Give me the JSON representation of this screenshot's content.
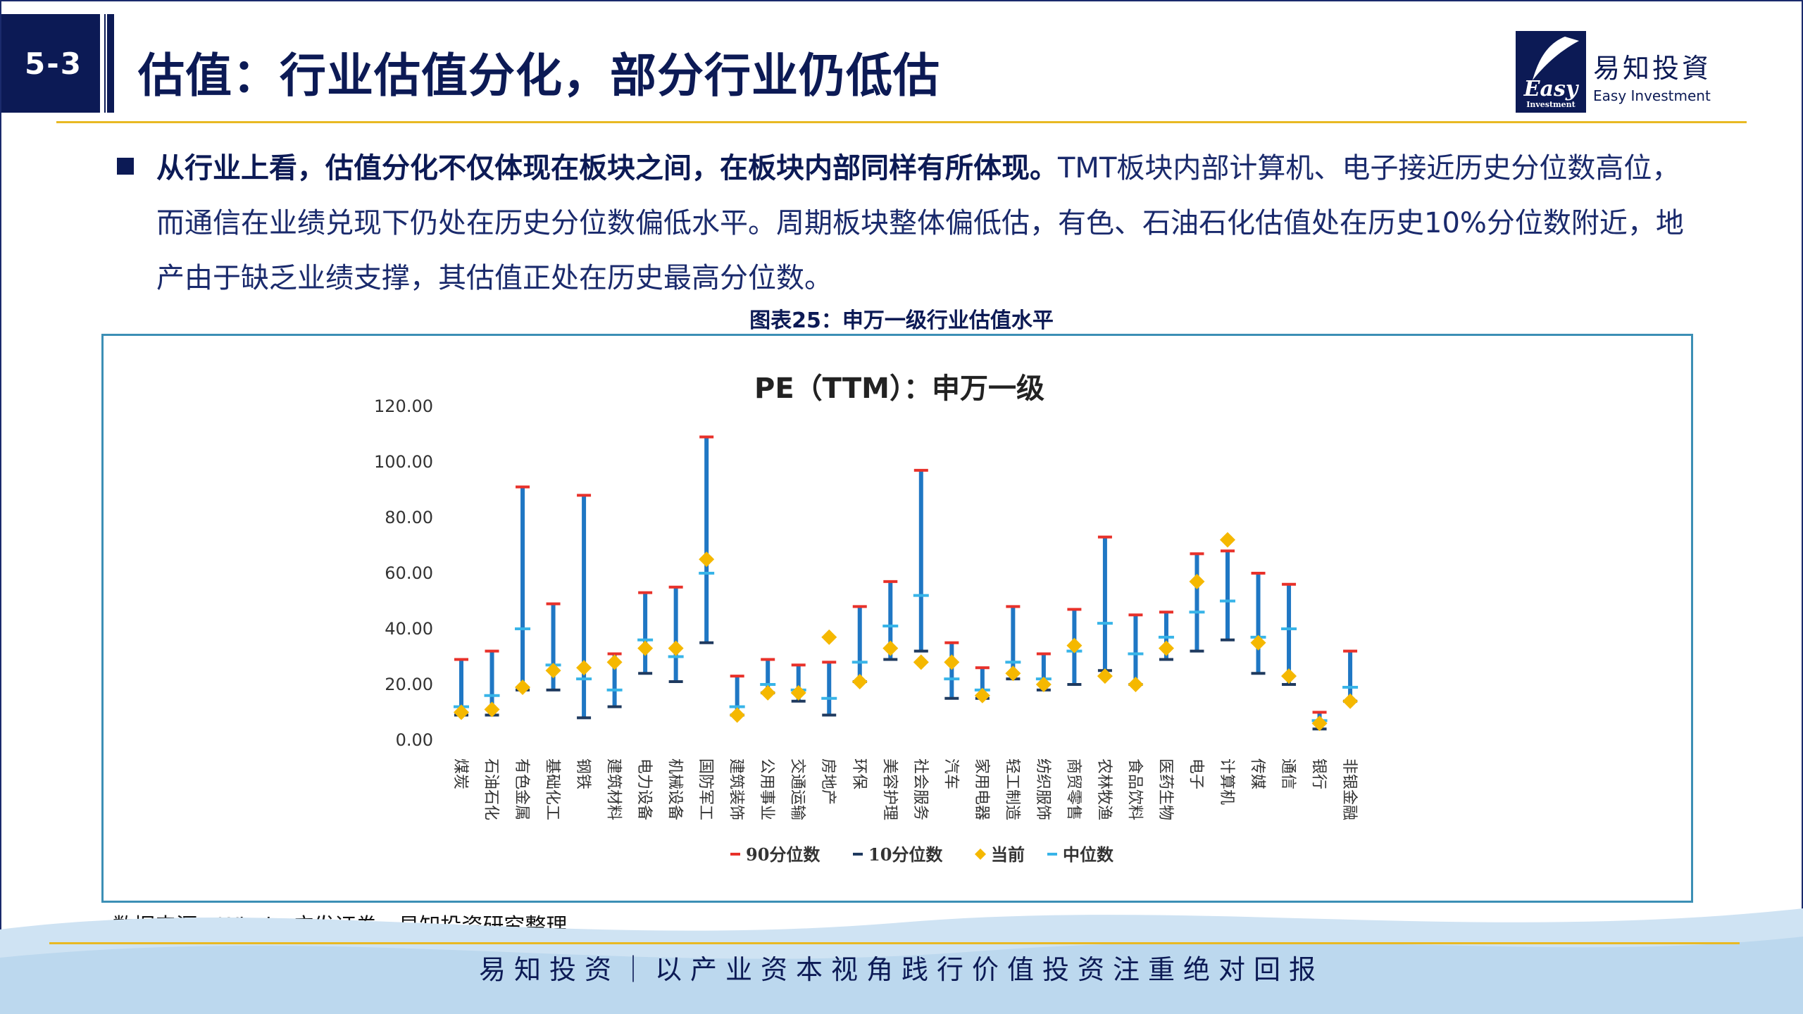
{
  "header": {
    "badge": "5-3",
    "title": "估值：行业估值分化，部分行业仍低估",
    "logo_cn": "易知投資",
    "logo_en": "Easy Investment",
    "logo_mark_text": "Easy",
    "logo_mark_sub": "Investment"
  },
  "body": {
    "bold_text": "从行业上看，估值分化不仅体现在板块之间，在板块内部同样有所体现。",
    "normal_text": "TMT板块内部计算机、电子接近历史分位数高位，而通信在业绩兑现下仍处在历史分位数偏低水平。周期板块整体偏低估，有色、石油石化估值处在历史10%分位数附近，地产由于缺乏业绩支撑，其估值正处在历史最高分位数。"
  },
  "figure": {
    "caption": "图表25：申万一级行业估值水平",
    "source": "数据来源：Wind、广发证券、易知投资研究整理"
  },
  "chart_data": {
    "type": "scatter",
    "title": "PE（TTM）：申万一级",
    "xlabel": "",
    "ylabel": "",
    "ylim": [
      0,
      120
    ],
    "ytick_labels": [
      "0.00",
      "20.00",
      "40.00",
      "60.00",
      "80.00",
      "100.00",
      "120.00"
    ],
    "grid": false,
    "legend_position": "bottom",
    "categories": [
      "煤炭",
      "石油石化",
      "有色金属",
      "基础化工",
      "钢铁",
      "建筑材料",
      "电力设备",
      "机械设备",
      "国防军工",
      "建筑装饰",
      "公用事业",
      "交通运输",
      "房地产",
      "环保",
      "美容护理",
      "社会服务",
      "汽车",
      "家用电器",
      "轻工制造",
      "纺织服饰",
      "商贸零售",
      "农林牧渔",
      "食品饮料",
      "医药生物",
      "电子",
      "计算机",
      "传媒",
      "通信",
      "银行",
      "非银金融"
    ],
    "series": [
      {
        "name": "90分位数",
        "values": [
          29,
          32,
          91,
          49,
          88,
          31,
          53,
          55,
          109,
          23,
          29,
          27,
          28,
          48,
          57,
          97,
          35,
          26,
          48,
          31,
          47,
          73,
          45,
          46,
          67,
          68,
          60,
          56,
          10,
          32
        ]
      },
      {
        "name": "10分位数",
        "values": [
          9,
          9,
          18,
          18,
          8,
          12,
          24,
          21,
          35,
          9,
          17,
          14,
          9,
          21,
          29,
          32,
          15,
          15,
          22,
          18,
          20,
          25,
          20,
          29,
          32,
          36,
          24,
          20,
          4,
          14
        ]
      },
      {
        "name": "当前",
        "values": [
          10,
          11,
          19,
          25,
          26,
          28,
          33,
          33,
          65,
          9,
          17,
          17,
          37,
          21,
          33,
          28,
          28,
          16,
          24,
          20,
          34,
          23,
          20,
          33,
          57,
          72,
          35,
          23,
          6,
          14
        ]
      },
      {
        "name": "中位数",
        "values": [
          12,
          16,
          40,
          27,
          22,
          18,
          36,
          30,
          60,
          12,
          20,
          18,
          15,
          28,
          41,
          52,
          22,
          18,
          28,
          22,
          32,
          42,
          31,
          37,
          46,
          50,
          37,
          40,
          7,
          19
        ]
      }
    ],
    "colors": {
      "p90": "#e8312a",
      "p10": "#1f3a5f",
      "bar": "#1f77c4",
      "current": "#f5b800",
      "median": "#38b4e8"
    }
  },
  "footer": {
    "tagline": "易知投资｜以产业资本视角践行价值投资注重绝对回报"
  }
}
